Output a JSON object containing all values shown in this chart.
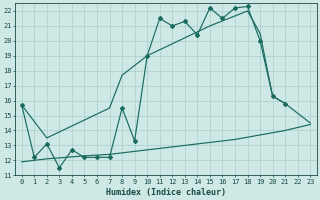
{
  "xlabel": "Humidex (Indice chaleur)",
  "background_color": "#cde8e5",
  "grid_color": "#aacfcb",
  "line_color": "#1a6b60",
  "xlim": [
    -0.5,
    23.5
  ],
  "ylim": [
    11,
    22.5
  ],
  "yticks": [
    11,
    12,
    13,
    14,
    15,
    16,
    17,
    18,
    19,
    20,
    21,
    22
  ],
  "xticks": [
    0,
    1,
    2,
    3,
    4,
    5,
    6,
    7,
    8,
    9,
    10,
    11,
    12,
    13,
    14,
    15,
    16,
    17,
    18,
    19,
    20,
    21,
    22,
    23
  ],
  "line1_x": [
    0,
    1,
    2,
    3,
    4,
    5,
    6,
    7,
    8,
    9,
    10,
    11,
    12,
    13,
    14,
    15,
    16,
    17,
    18,
    19,
    20,
    21
  ],
  "line1_y": [
    15.7,
    12.2,
    13.1,
    11.5,
    12.7,
    12.2,
    12.2,
    12.2,
    15.5,
    13.3,
    19.0,
    21.5,
    21.0,
    21.3,
    20.4,
    22.2,
    21.5,
    22.2,
    22.3,
    20.0,
    16.3,
    15.8
  ],
  "line2_x": [
    0,
    2,
    7,
    8,
    10,
    15,
    18,
    19,
    20,
    21,
    23
  ],
  "line2_y": [
    15.7,
    13.5,
    15.5,
    17.7,
    19.0,
    21.0,
    22.0,
    20.5,
    16.3,
    15.8,
    14.5
  ],
  "line3_x": [
    0,
    2,
    5,
    7,
    9,
    11,
    13,
    15,
    17,
    19,
    21,
    23
  ],
  "line3_y": [
    11.9,
    12.1,
    12.3,
    12.4,
    12.6,
    12.8,
    13.0,
    13.2,
    13.4,
    13.7,
    14.0,
    14.4
  ]
}
